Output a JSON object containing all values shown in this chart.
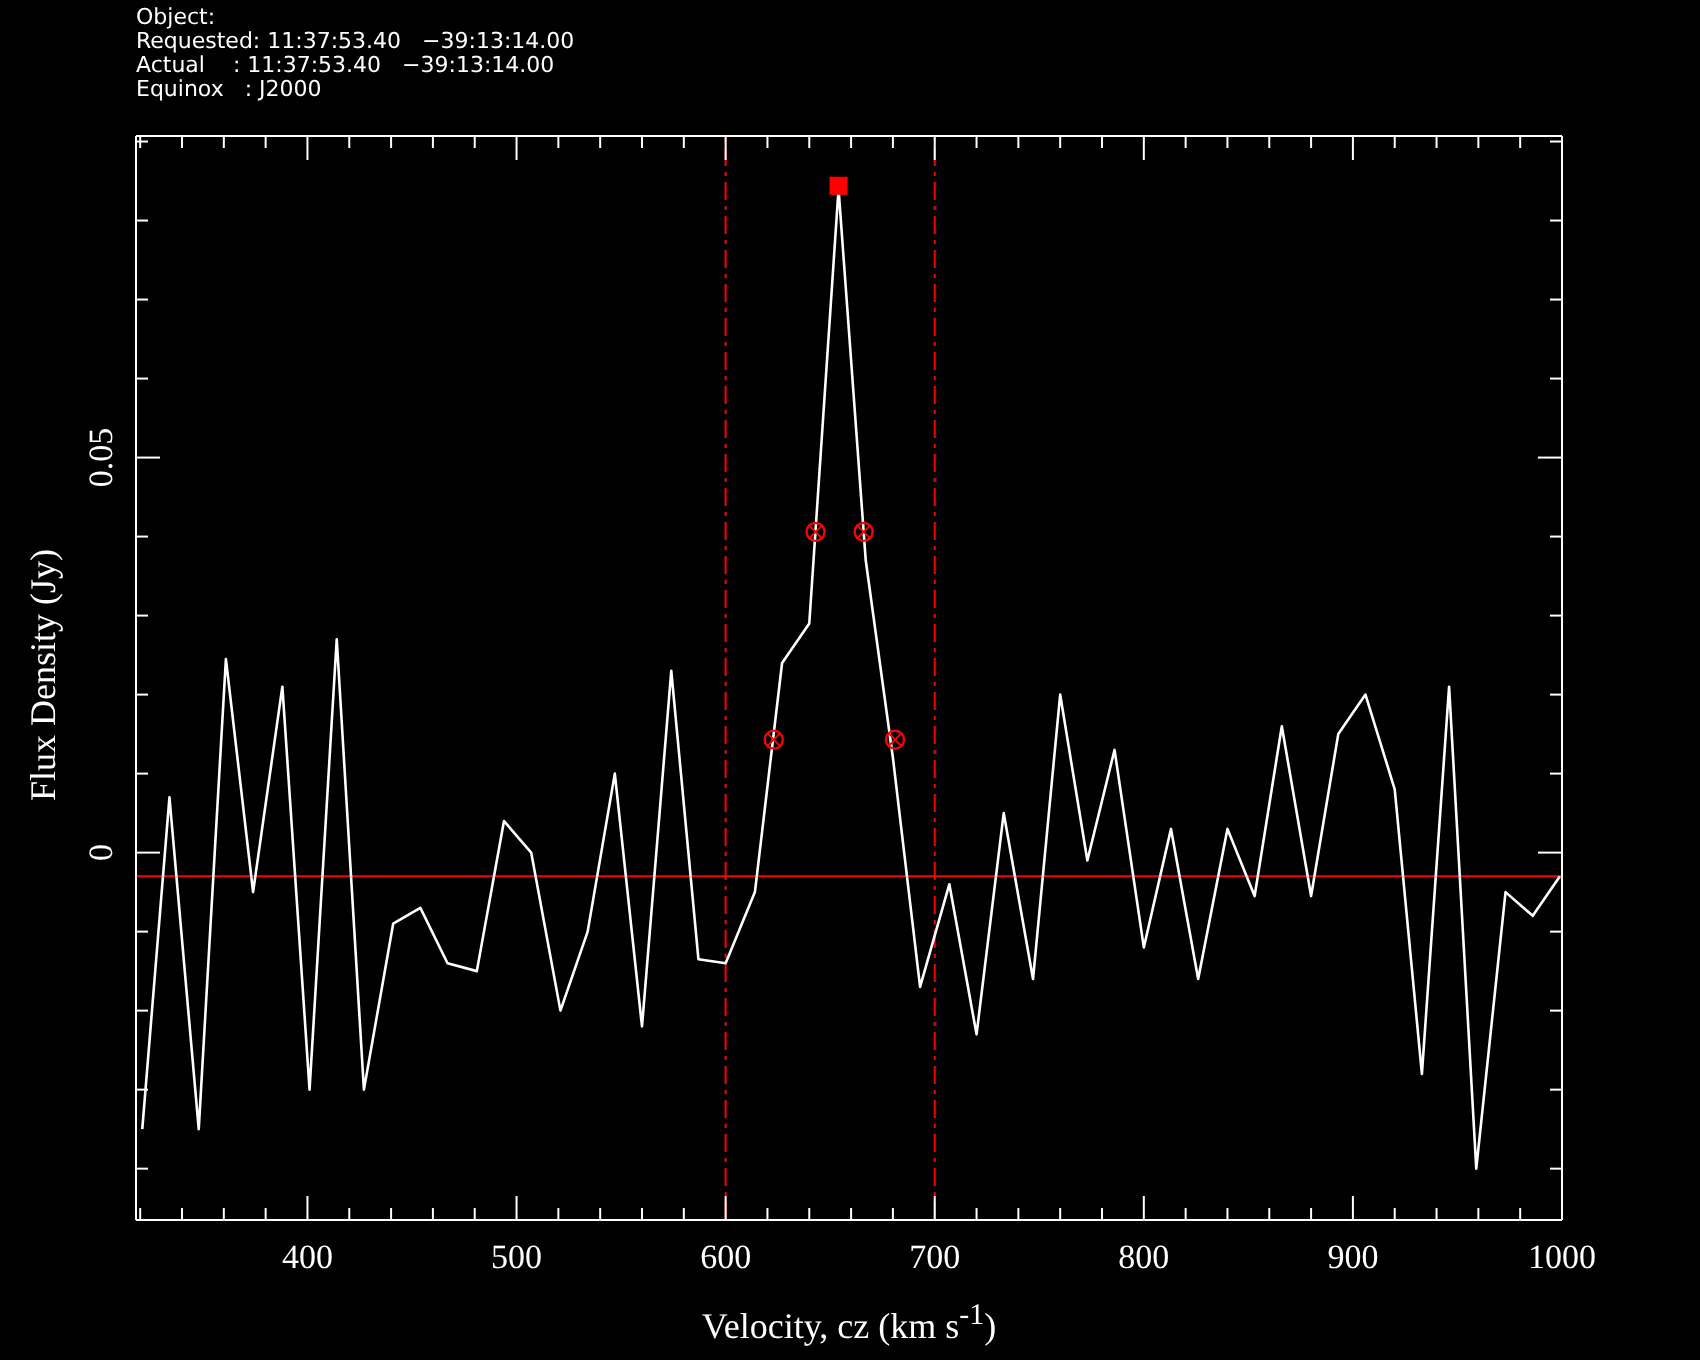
{
  "chart_data": {
    "type": "line",
    "annotations": [
      "Object:",
      "Requested: 11:37:53.40   −39:13:14.00",
      "Actual    : 11:37:53.40   −39:13:14.00",
      "Equinox   : J2000"
    ],
    "xlabel": "Velocity, cz (km s$^{-1}$)",
    "ylabel": "Flux Density (Jy)",
    "xlim": [
      318,
      1000
    ],
    "ylim": [
      -0.0465,
      0.0907
    ],
    "xticks": [
      {
        "value": 320,
        "label": null
      },
      {
        "value": 340,
        "label": null
      },
      {
        "value": 360,
        "label": null
      },
      {
        "value": 380,
        "label": null
      },
      400,
      {
        "value": 420,
        "label": null
      },
      {
        "value": 440,
        "label": null
      },
      {
        "value": 460,
        "label": null
      },
      {
        "value": 480,
        "label": null
      },
      500,
      {
        "value": 520,
        "label": null
      },
      {
        "value": 540,
        "label": null
      },
      {
        "value": 560,
        "label": null
      },
      {
        "value": 580,
        "label": null
      },
      600,
      {
        "value": 620,
        "label": null
      },
      {
        "value": 640,
        "label": null
      },
      {
        "value": 660,
        "label": null
      },
      {
        "value": 680,
        "label": null
      },
      700,
      {
        "value": 720,
        "label": null
      },
      {
        "value": 740,
        "label": null
      },
      {
        "value": 760,
        "label": null
      },
      {
        "value": 780,
        "label": null
      },
      800,
      {
        "value": 820,
        "label": null
      },
      {
        "value": 840,
        "label": null
      },
      {
        "value": 860,
        "label": null
      },
      {
        "value": 880,
        "label": null
      },
      900,
      {
        "value": 920,
        "label": null
      },
      {
        "value": 940,
        "label": null
      },
      {
        "value": 960,
        "label": null
      },
      {
        "value": 980,
        "label": null
      },
      1000
    ],
    "yticks": [
      {
        "value": -0.04,
        "label": null
      },
      {
        "value": -0.03,
        "label": null
      },
      {
        "value": -0.02,
        "label": null
      },
      {
        "value": -0.01,
        "label": null
      },
      0,
      {
        "value": 0.01,
        "label": null
      },
      {
        "value": 0.02,
        "label": null
      },
      {
        "value": 0.03,
        "label": null
      },
      {
        "value": 0.04,
        "label": null
      },
      0.05,
      {
        "value": 0.06,
        "label": null
      },
      {
        "value": 0.07,
        "label": null
      },
      {
        "value": 0.08,
        "label": null
      },
      {
        "value": 0.09,
        "label": null
      }
    ],
    "series": [
      {
        "color": "#ffffff",
        "marker": "none",
        "x": [
          321,
          334,
          348,
          361,
          374,
          388,
          401,
          414,
          427,
          441,
          454,
          467,
          481,
          494,
          507,
          521,
          534,
          547,
          560,
          574,
          587,
          600,
          614,
          627,
          640,
          654,
          667,
          680,
          693,
          707,
          720,
          733,
          747,
          760,
          773,
          786,
          800,
          813,
          826,
          840,
          853,
          866,
          880,
          893,
          906,
          920,
          933,
          946,
          959,
          973,
          986,
          999
        ],
        "values": [
          -0.035,
          0.007,
          -0.035,
          0.0245,
          -0.005,
          0.021,
          -0.03,
          0.027,
          -0.03,
          -0.009,
          -0.007,
          -0.014,
          -0.015,
          0.004,
          0.0,
          -0.02,
          -0.01,
          0.01,
          -0.022,
          0.023,
          -0.0135,
          -0.014,
          -0.005,
          0.024,
          0.029,
          0.084,
          0.037,
          0.012,
          -0.017,
          -0.004,
          -0.023,
          0.005,
          -0.016,
          0.02,
          -0.001,
          0.013,
          -0.012,
          0.003,
          -0.016,
          0.003,
          -0.0055,
          0.016,
          -0.0055,
          0.015,
          0.02,
          0.008,
          -0.028,
          0.021,
          -0.04,
          -0.005,
          -0.008,
          -0.003
        ]
      },
      {
        "type": "scatter",
        "color": "#ff0000",
        "marker": "circle",
        "x": [
          623,
          643,
          666,
          681
        ],
        "values": [
          0.0143,
          0.0406,
          0.0406,
          0.0143
        ]
      },
      {
        "type": "scatter",
        "color": "#ff0000",
        "marker": "square",
        "x": [
          654
        ],
        "values": [
          0.0844
        ]
      }
    ],
    "ref_lines": [
      {
        "axis": "x",
        "value": 600,
        "color": "#ff0000",
        "line_style": "dashed"
      },
      {
        "axis": "x",
        "value": 700,
        "color": "#ff0000",
        "line_style": "dashed"
      },
      {
        "axis": "y",
        "value": -0.003,
        "color": "#ff0000",
        "line_style": "solid"
      }
    ]
  }
}
